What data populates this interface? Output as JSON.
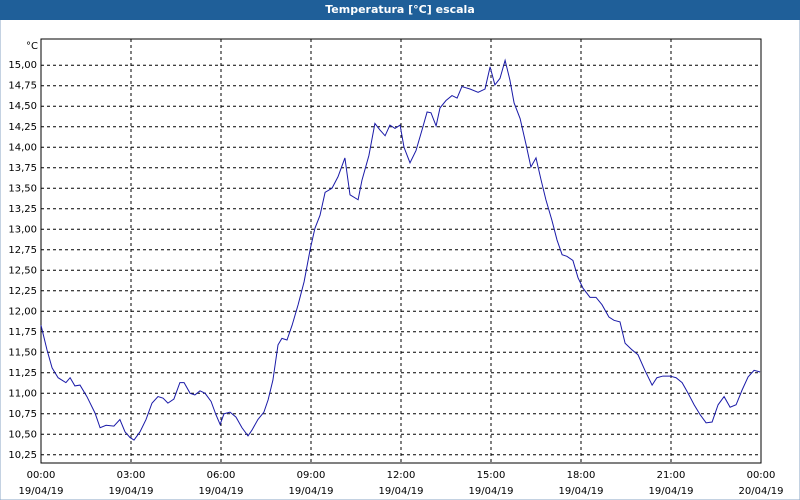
{
  "chart_data": {
    "type": "line",
    "title": "Temperatura [°C] escala",
    "y_unit": "°C",
    "x": [
      0,
      0.2,
      0.37,
      0.57,
      0.83,
      0.97,
      1.13,
      1.3,
      1.53,
      1.8,
      1.97,
      2.17,
      2.43,
      2.63,
      2.8,
      2.97,
      3.1,
      3.3,
      3.5,
      3.7,
      3.9,
      4.07,
      4.23,
      4.43,
      4.63,
      4.77,
      4.97,
      5.13,
      5.3,
      5.47,
      5.67,
      5.83,
      5.97,
      6.1,
      6.3,
      6.5,
      6.7,
      6.9,
      7.03,
      7.23,
      7.43,
      7.57,
      7.73,
      7.9,
      8.03,
      8.2,
      8.37,
      8.57,
      8.77,
      8.97,
      9.13,
      9.3,
      9.47,
      9.7,
      9.9,
      10.13,
      10.3,
      10.57,
      10.7,
      10.93,
      11.13,
      11.3,
      11.47,
      11.63,
      11.8,
      11.97,
      12.1,
      12.3,
      12.5,
      12.7,
      12.87,
      13.0,
      13.17,
      13.3,
      13.5,
      13.7,
      13.87,
      14.03,
      14.3,
      14.57,
      14.8,
      14.97,
      15.13,
      15.3,
      15.47,
      15.63,
      15.77,
      15.97,
      16.17,
      16.33,
      16.5,
      16.67,
      16.83,
      17.03,
      17.2,
      17.37,
      17.53,
      17.73,
      17.9,
      18.07,
      18.3,
      18.5,
      18.7,
      18.93,
      19.1,
      19.3,
      19.47,
      19.7,
      19.9,
      20.13,
      20.37,
      20.53,
      20.73,
      20.97,
      21.17,
      21.37,
      21.57,
      21.77,
      21.97,
      22.17,
      22.37,
      22.57,
      22.77,
      22.97,
      23.17,
      23.37,
      23.57,
      23.77,
      23.97
    ],
    "series": [
      {
        "name": "Temperatura",
        "color": "#1a1aa8",
        "values": [
          11.83,
          11.53,
          11.31,
          11.19,
          11.13,
          11.19,
          11.09,
          11.1,
          10.96,
          10.76,
          10.58,
          10.61,
          10.6,
          10.68,
          10.53,
          10.46,
          10.43,
          10.53,
          10.68,
          10.88,
          10.96,
          10.94,
          10.88,
          10.93,
          11.13,
          11.13,
          11.0,
          10.98,
          11.03,
          11.0,
          10.9,
          10.74,
          10.62,
          10.75,
          10.77,
          10.71,
          10.58,
          10.48,
          10.55,
          10.68,
          10.77,
          10.92,
          11.16,
          11.59,
          11.67,
          11.65,
          11.83,
          12.08,
          12.36,
          12.75,
          13.01,
          13.17,
          13.45,
          13.5,
          13.64,
          13.87,
          13.42,
          13.36,
          13.6,
          13.9,
          14.29,
          14.21,
          14.14,
          14.27,
          14.23,
          14.27,
          14.0,
          13.81,
          13.96,
          14.21,
          14.43,
          14.42,
          14.26,
          14.48,
          14.57,
          14.63,
          14.6,
          14.74,
          14.71,
          14.67,
          14.71,
          14.98,
          14.76,
          14.84,
          15.06,
          14.82,
          14.54,
          14.35,
          14.03,
          13.76,
          13.87,
          13.6,
          13.36,
          13.11,
          12.87,
          12.69,
          12.67,
          12.62,
          12.41,
          12.28,
          12.17,
          12.17,
          12.08,
          11.93,
          11.89,
          11.87,
          11.61,
          11.53,
          11.47,
          11.28,
          11.1,
          11.19,
          11.21,
          11.21,
          11.19,
          11.13,
          11.0,
          10.86,
          10.74,
          10.64,
          10.65,
          10.86,
          10.96,
          10.83,
          10.86,
          11.04,
          11.2,
          11.28,
          11.26
        ]
      }
    ],
    "xlim": [
      0,
      24
    ],
    "xticks": [
      {
        "value": 0,
        "label": "00:00"
      },
      {
        "value": 3,
        "label": "03:00"
      },
      {
        "value": 6,
        "label": "06:00"
      },
      {
        "value": 9,
        "label": "09:00"
      },
      {
        "value": 12,
        "label": "12:00"
      },
      {
        "value": 15,
        "label": "15:00"
      },
      {
        "value": 18,
        "label": "18:00"
      },
      {
        "value": 21,
        "label": "21:00"
      },
      {
        "value": 24,
        "label": "00:00"
      }
    ],
    "xtick_dates": [
      "19/04/19",
      "19/04/19",
      "19/04/19",
      "19/04/19",
      "19/04/19",
      "19/04/19",
      "19/04/19",
      "19/04/19",
      "20/04/19"
    ],
    "ylim": [
      10.15,
      15.32
    ],
    "yticks": [
      {
        "value": 10.25,
        "label": "10,25"
      },
      {
        "value": 10.5,
        "label": "10,50"
      },
      {
        "value": 10.75,
        "label": "10,75"
      },
      {
        "value": 11,
        "label": "11,00"
      },
      {
        "value": 11.25,
        "label": "11,25"
      },
      {
        "value": 11.5,
        "label": "11,50"
      },
      {
        "value": 11.75,
        "label": "11,75"
      },
      {
        "value": 12,
        "label": "12,00"
      },
      {
        "value": 12.25,
        "label": "12,25"
      },
      {
        "value": 12.5,
        "label": "12,50"
      },
      {
        "value": 12.75,
        "label": "12,75"
      },
      {
        "value": 13,
        "label": "13,00"
      },
      {
        "value": 13.25,
        "label": "13,25"
      },
      {
        "value": 13.5,
        "label": "13,50"
      },
      {
        "value": 13.75,
        "label": "13,75"
      },
      {
        "value": 14,
        "label": "14,00"
      },
      {
        "value": 14.25,
        "label": "14,25"
      },
      {
        "value": 14.5,
        "label": "14,50"
      },
      {
        "value": 14.75,
        "label": "14,75"
      },
      {
        "value": 15,
        "label": "15,00"
      }
    ],
    "grid": true
  }
}
